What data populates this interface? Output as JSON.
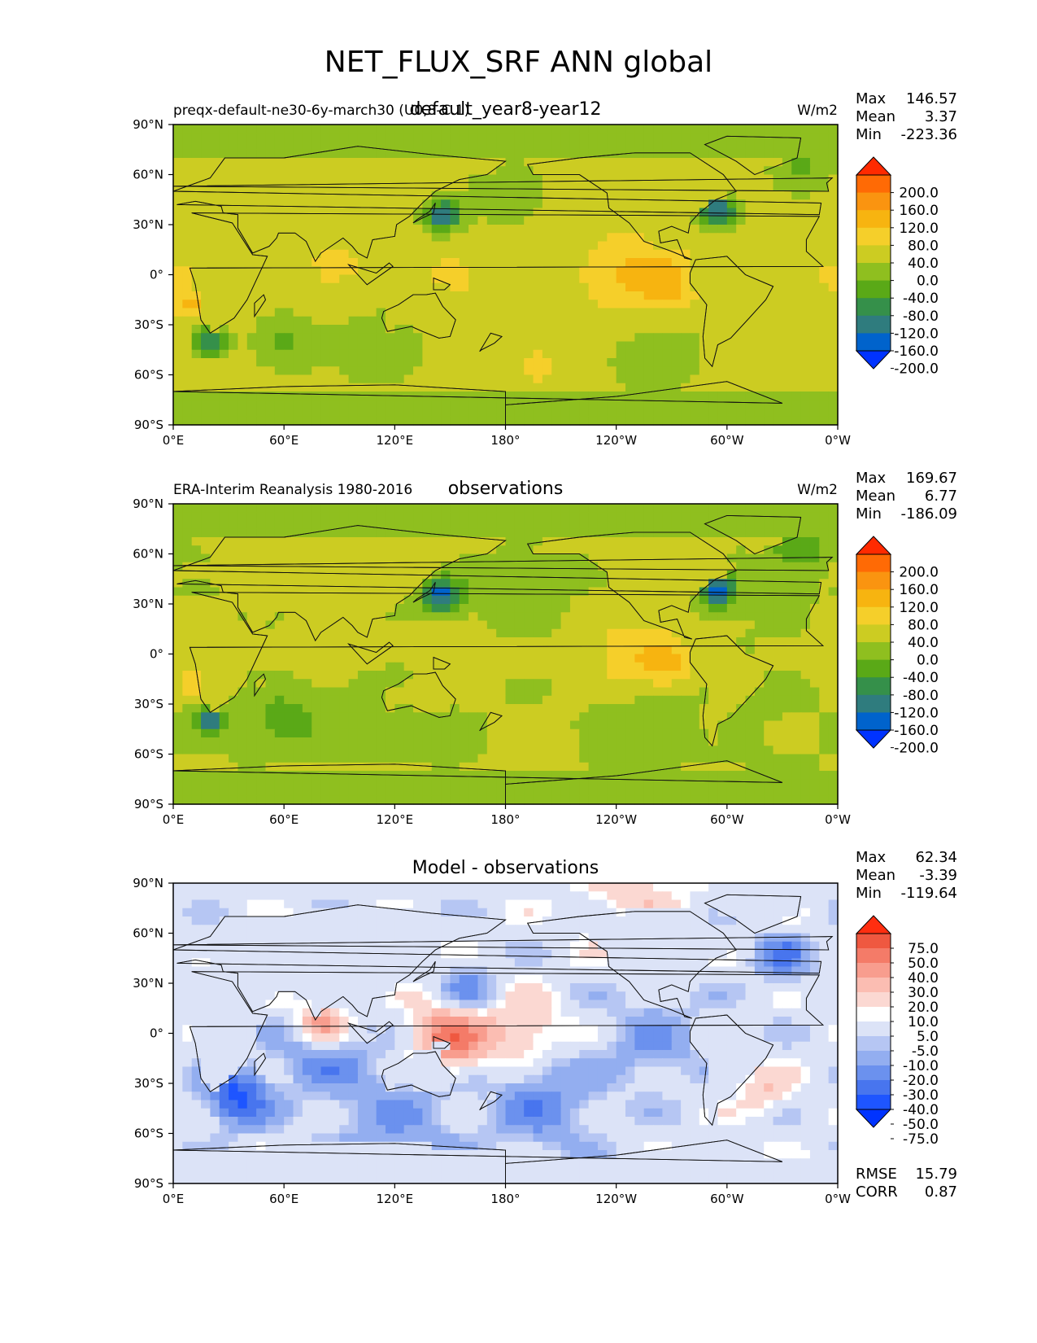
{
  "figure": {
    "suptitle": "NET_FLUX_SRF ANN global",
    "lat_tick_labels": [
      "90°N",
      "60°N",
      "30°N",
      "0°",
      "30°S",
      "60°S",
      "90°S"
    ],
    "lon_tick_labels": [
      "0°E",
      "60°E",
      "120°E",
      "180°",
      "120°W",
      "60°W",
      "0°W"
    ],
    "stat_labels": {
      "max": "Max",
      "mean": "Mean",
      "min": "Min",
      "rmse": "RMSE",
      "corr": "CORR"
    }
  },
  "colors": {
    "flux_levels": [
      "#0033ff",
      "#0063cc",
      "#2f7c7e",
      "#35904a",
      "#5aa917",
      "#8fbf1f",
      "#cccc22",
      "#f5cf2a",
      "#f7b410",
      "#fa9410",
      "#ff6a05",
      "#ff2a00"
    ],
    "diff_levels": [
      "#0033ff",
      "#1e55ff",
      "#4875ee",
      "#6b91ee",
      "#93aef0",
      "#b6c6f3",
      "#dce3f7",
      "#ffffff",
      "#fbd8d2",
      "#fbbdb2",
      "#f89d8e",
      "#f47b68",
      "#ef5840",
      "#ff2e10"
    ]
  },
  "chart_data": [
    {
      "type": "heatmap",
      "title_left": "preqx-default-ne30-6y-march30 (U0,8-C.1)",
      "title_center": "default_year8-year12",
      "title_right": "W/m2",
      "stats": {
        "max": "146.57",
        "mean": "3.37",
        "min": "-223.36"
      },
      "colorbar_levels": [
        "200.0",
        "160.0",
        "120.0",
        "80.0",
        "40.0",
        "0.0",
        "-40.0",
        "-80.0",
        "-120.0",
        "-160.0",
        "-200.0"
      ],
      "xlim": [
        0,
        360
      ],
      "ylim": [
        -90,
        90
      ],
      "colorscale": "flux",
      "field": "model"
    },
    {
      "type": "heatmap",
      "title_left": "ERA-Interim Reanalysis 1980-2016",
      "title_center": "observations",
      "title_right": "W/m2",
      "stats": {
        "max": "169.67",
        "mean": "6.77",
        "min": "-186.09"
      },
      "colorbar_levels": [
        "200.0",
        "160.0",
        "120.0",
        "80.0",
        "40.0",
        "0.0",
        "-40.0",
        "-80.0",
        "-120.0",
        "-160.0",
        "-200.0"
      ],
      "xlim": [
        0,
        360
      ],
      "ylim": [
        -90,
        90
      ],
      "colorscale": "flux",
      "field": "obs"
    },
    {
      "type": "heatmap",
      "title_left": "",
      "title_center": "Model - observations",
      "title_right": "",
      "stats": {
        "max": "62.34",
        "mean": "-3.39",
        "min": "-119.64"
      },
      "extra_stats": {
        "rmse": "15.79",
        "corr": "0.87"
      },
      "colorbar_levels": [
        "75.0",
        "50.0",
        "40.0",
        "30.0",
        "20.0",
        "10.0",
        "5.0",
        "-5.0",
        "-10.0",
        "-20.0",
        "-30.0",
        "-40.0",
        "-50.0",
        "-75.0"
      ],
      "xlim": [
        0,
        360
      ],
      "ylim": [
        -90,
        90
      ],
      "colorscale": "diff",
      "field": "diff"
    }
  ]
}
